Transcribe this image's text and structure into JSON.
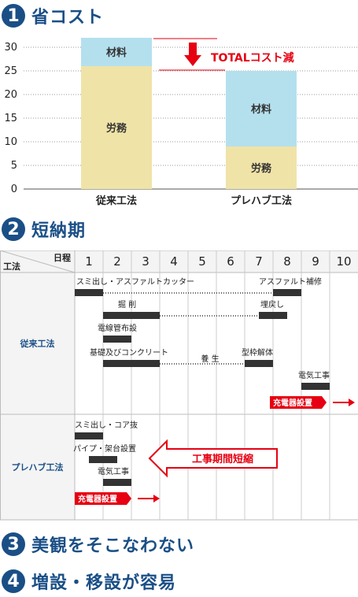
{
  "sections": [
    {
      "number": "1",
      "title": "省コスト"
    },
    {
      "number": "2",
      "title": "短納期"
    },
    {
      "number": "3",
      "title": "美観をそこなわない"
    },
    {
      "number": "4",
      "title": "増設・移設が容易"
    }
  ],
  "chart_data": [
    {
      "type": "bar",
      "stacked": true,
      "categories": [
        "従来工法",
        "プレハブ工法"
      ],
      "series": [
        {
          "name": "労務",
          "values": [
            26,
            9
          ],
          "color": "#f0e3a8"
        },
        {
          "name": "材料",
          "values": [
            6,
            16
          ],
          "color": "#b4e0ee"
        }
      ],
      "ylim": [
        0,
        30
      ],
      "yticks": [
        "0",
        "5",
        "10",
        "15",
        "20",
        "25",
        "30"
      ],
      "grid": true,
      "annotation": "TOTALコスト減",
      "annotation_color": "#e60012"
    },
    {
      "type": "table",
      "header_corner": {
        "top": "日程",
        "bottom": "工法"
      },
      "days": [
        "1",
        "2",
        "3",
        "4",
        "5",
        "6",
        "7",
        "8",
        "9",
        "10"
      ],
      "groups": [
        {
          "name": "従来工法",
          "tasks": [
            {
              "label": "スミ出し・アスファルトカッター",
              "start": 0,
              "end": 1
            },
            {
              "label": "アスファルト補修",
              "start": 7,
              "end": 8
            },
            {
              "label": "掘 削",
              "start": 1,
              "end": 3
            },
            {
              "label": "埋戻し",
              "start": 6.5,
              "end": 7.5
            },
            {
              "label": "電線管布設",
              "start": 1,
              "end": 2
            },
            {
              "label": "基礎及びコンクリート",
              "start": 1,
              "end": 3
            },
            {
              "label": "型枠解体",
              "start": 6,
              "end": 7
            },
            {
              "label": "電気工事",
              "start": 8,
              "end": 9
            }
          ],
          "gaps": [
            {
              "label": "",
              "from": 1,
              "to": 7
            },
            {
              "label": "",
              "from": 3,
              "to": 6.5
            },
            {
              "label": "養 生",
              "from": 3,
              "to": 6
            }
          ],
          "milestone": "充電器設置"
        },
        {
          "name": "プレハブ工法",
          "tasks": [
            {
              "label": "スミ出し・コア抜",
              "start": 0,
              "end": 1
            },
            {
              "label": "パイプ・架台設置",
              "start": 0.5,
              "end": 1.5
            },
            {
              "label": "電気工事",
              "start": 1,
              "end": 2
            }
          ],
          "milestone": "充電器設置",
          "annotation": "工事期間短縮"
        }
      ]
    }
  ]
}
